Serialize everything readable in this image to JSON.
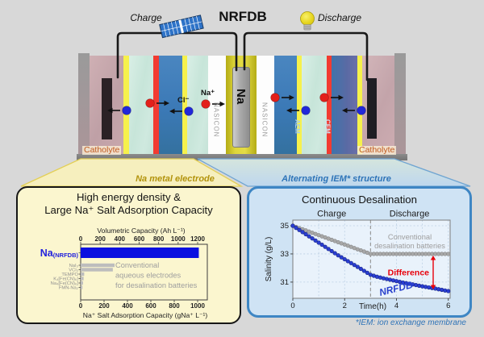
{
  "header": {
    "title": "NRFDB",
    "charge_label": "Charge",
    "discharge_label": "Discharge"
  },
  "cell": {
    "catholyte_left_label": "Catholyte",
    "catholyte_right_label": "Catholyte",
    "nasicon_left_label": "NASICON",
    "nasicon_right_label": "NASICON",
    "na_electrode_label": "Na",
    "aem_label": "AEM",
    "cem_label": "CEM",
    "na_ion_label": "Na⁺",
    "cl_ion_label": "Cl⁻",
    "ion_colors": {
      "na": "#e3201b",
      "cl": "#2127d9"
    }
  },
  "left_panel": {
    "tag": "Na metal electrode",
    "title_line1": "High energy density &",
    "title_line2": "Large Na⁺ Salt Adsorption Capacity"
  },
  "right_panel": {
    "tag": "Alternating IEM* structure",
    "title": "Continuous Desalination"
  },
  "footer_note": "*IEM: ion exchange membrane",
  "chart_data": [
    {
      "type": "bar",
      "orientation": "horizontal",
      "panel": "left",
      "top_axis": {
        "label": "Volumetric Capacity (Ah L⁻¹)",
        "ticks": [
          0,
          200,
          400,
          600,
          800,
          1000,
          1200
        ],
        "max": 1200
      },
      "bottom_axis": {
        "label": "Na⁺ Salt Adsorption Capacity (gNa⁺ L⁻¹)",
        "ticks": [
          0,
          200,
          400,
          600,
          800,
          1000
        ],
        "max": 1000
      },
      "categories": [
        "Na(NRFDB)",
        "NaI₃",
        "VCl₃",
        "TEMPO",
        "K₄[Fe(CN)₆]",
        "Na₄[Fe(CN)₆]",
        "FMN-Na₂"
      ],
      "values_g_per_L": [
        1010,
        290,
        275,
        30,
        25,
        20,
        15
      ],
      "highlight_index": 0,
      "highlight_color": "#0b10e0",
      "bar_color": "#bdbdbd",
      "highlight_label_color": "#2222dd",
      "annotation": {
        "lines": [
          "Conventional",
          "aqueous electrodes",
          "for desalination batteries"
        ],
        "color": "#9e9e9e"
      }
    },
    {
      "type": "scatter",
      "panel": "right",
      "xlabel": "Time(h)",
      "ylabel": "Salinity (g/L)",
      "xlim": [
        0,
        6.07
      ],
      "ylim": [
        29.85,
        35.4
      ],
      "xticks": [
        0,
        2,
        4,
        6
      ],
      "yticks": [
        31,
        33,
        35
      ],
      "grid_x": [
        1,
        2,
        3,
        4,
        5,
        6
      ],
      "phase_divider_x": 3,
      "phase_labels": [
        "Charge",
        "Discharge"
      ],
      "x": [
        0,
        0.25,
        0.5,
        0.75,
        1,
        1.25,
        1.5,
        1.75,
        2,
        2.25,
        2.5,
        2.75,
        3,
        3.25,
        3.5,
        3.75,
        4,
        4.25,
        4.5,
        4.75,
        5,
        5.25,
        5.5,
        5.75,
        6
      ],
      "series": [
        {
          "name": "Conventional desalination batteries",
          "color": "#a8a8a8",
          "edge": "#848484",
          "values": [
            35,
            34.83,
            34.67,
            34.5,
            34.33,
            34.17,
            34,
            33.83,
            33.67,
            33.5,
            33.33,
            33.17,
            33,
            33,
            33,
            33,
            33,
            33,
            33,
            33,
            33,
            33,
            33,
            33,
            33
          ]
        },
        {
          "name": "NRFDB",
          "color": "#2a3ed2",
          "edge": "#14207f",
          "values": [
            35,
            34.7,
            34.4,
            34.1,
            33.8,
            33.5,
            33.2,
            32.9,
            32.62,
            32.35,
            32.08,
            31.8,
            31.52,
            31.38,
            31.27,
            31.17,
            31.07,
            30.97,
            30.88,
            30.79,
            30.7,
            30.62,
            30.54,
            30.45,
            30.36
          ]
        }
      ],
      "annotations": {
        "conventional": {
          "lines": [
            "Conventional",
            "desalination batteries"
          ],
          "color": "#9e9e9e"
        },
        "difference": {
          "text": "Difference",
          "color": "#e8000b"
        },
        "nrfdb": {
          "text": "NRFDB",
          "color": "#2840cc"
        }
      }
    }
  ]
}
